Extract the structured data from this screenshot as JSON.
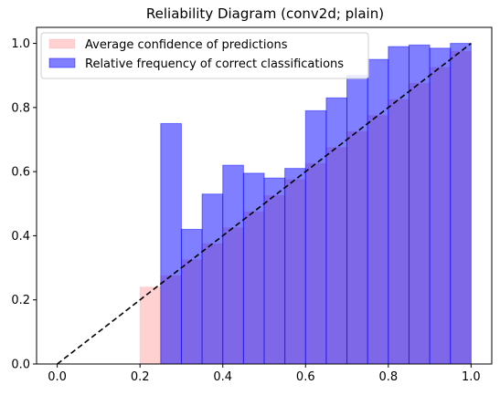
{
  "chart_data": {
    "type": "bar",
    "title": "Reliability Diagram (conv2d; plain)",
    "xlabel": "",
    "ylabel": "",
    "xlim": [
      -0.05,
      1.05
    ],
    "ylim": [
      0,
      1.05
    ],
    "xticks": [
      0.0,
      0.2,
      0.4,
      0.6,
      0.8,
      1.0
    ],
    "xtick_labels": [
      "0.0",
      "0.2",
      "0.4",
      "0.6",
      "0.8",
      "1.0"
    ],
    "yticks": [
      0.0,
      0.2,
      0.4,
      0.6,
      0.8,
      1.0
    ],
    "ytick_labels": [
      "0.0",
      "0.2",
      "0.4",
      "0.6",
      "0.8",
      "1.0"
    ],
    "bin_edges": [
      0.2,
      0.25,
      0.3,
      0.35,
      0.4,
      0.45,
      0.5,
      0.55,
      0.6,
      0.65,
      0.7,
      0.75,
      0.8,
      0.85,
      0.9,
      0.95,
      1.0
    ],
    "series": [
      {
        "name": "Average confidence of predictions",
        "color": "#ff9999",
        "values": [
          0.24,
          0.275,
          0.325,
          0.375,
          0.425,
          0.475,
          0.525,
          0.575,
          0.625,
          0.675,
          0.725,
          0.775,
          0.825,
          0.875,
          0.925,
          0.975
        ]
      },
      {
        "name": "Relative frequency of correct classifications",
        "color": "#0000ff",
        "values": [
          null,
          0.75,
          0.42,
          0.53,
          0.62,
          0.595,
          0.58,
          0.61,
          0.79,
          0.83,
          0.9,
          0.95,
          0.99,
          0.995,
          0.985,
          1.0
        ]
      }
    ],
    "diagonal": {
      "x": [
        0.0,
        1.0
      ],
      "y": [
        0.0,
        1.0
      ],
      "style": "dashed",
      "color": "#000000"
    },
    "legend_position": "top-left",
    "grid": false
  }
}
